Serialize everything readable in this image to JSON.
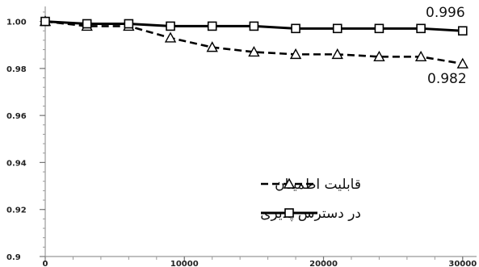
{
  "chart_data": {
    "type": "line",
    "title": "",
    "xlabel": "",
    "ylabel": "",
    "xlim": [
      0,
      31000
    ],
    "ylim": [
      0.9,
      1.005
    ],
    "x_ticks": [
      0,
      10000,
      20000,
      30000
    ],
    "x_tick_labels": [
      "0",
      "10000",
      "20000",
      "30000"
    ],
    "y_ticks": [
      1.0,
      0.98,
      0.96,
      0.94,
      0.92,
      0.9
    ],
    "y_tick_labels": [
      "1.00",
      "0.98",
      "0.96",
      "0.94",
      "0.92",
      "0.9"
    ],
    "grid": false,
    "legend_position": "bottom-right",
    "series": [
      {
        "name": "در دسترس پذیری",
        "style": "solid",
        "marker": "square",
        "color": "#000000",
        "x": [
          0,
          3000,
          6000,
          9000,
          12000,
          15000,
          18000,
          21000,
          24000,
          27000,
          30000
        ],
        "values": [
          1.0,
          0.999,
          0.999,
          0.998,
          0.998,
          0.998,
          0.997,
          0.997,
          0.997,
          0.997,
          0.996
        ]
      },
      {
        "name": "قابلیت اطمینان",
        "style": "dashed",
        "marker": "triangle",
        "color": "#000000",
        "x": [
          0,
          3000,
          6000,
          9000,
          12000,
          15000,
          18000,
          21000,
          24000,
          27000,
          30000
        ],
        "values": [
          1.0,
          0.998,
          0.998,
          0.993,
          0.989,
          0.987,
          0.986,
          0.986,
          0.985,
          0.985,
          0.982
        ]
      }
    ],
    "annotations": [
      {
        "text": "0.996",
        "series": 0
      },
      {
        "text": "0.982",
        "series": 1
      }
    ]
  }
}
